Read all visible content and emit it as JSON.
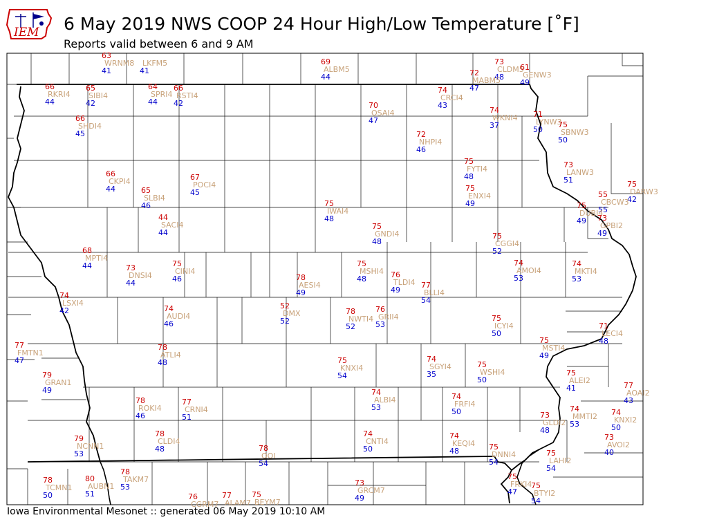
{
  "header": {
    "title": "6 May 2019 NWS COOP 24 Hour High/Low Temperature [˚F]",
    "subtitle": "Reports valid between 6 and 9 AM",
    "logo_text": "IEM"
  },
  "footer": {
    "text": "Iowa Environmental Mesonet :: generated 06 May 2019 10:10 AM"
  },
  "colors": {
    "high": "#cc0000",
    "low": "#0000cc",
    "station_id": "#c8a27a"
  },
  "stations": [
    {
      "id": "WRNM8",
      "high": "63",
      "low": "41"
    },
    {
      "id": "LKFM5",
      "high": "",
      "low": "41"
    },
    {
      "id": "ALBM5",
      "high": "69",
      "low": "44"
    },
    {
      "id": "CLDM5",
      "high": "73",
      "low": "48"
    },
    {
      "id": "GENW3",
      "high": "61",
      "low": "49"
    },
    {
      "id": "MABM5",
      "high": "72",
      "low": "47"
    },
    {
      "id": "RKRI4",
      "high": "66",
      "low": "44"
    },
    {
      "id": "SIBI4",
      "high": "65",
      "low": "42"
    },
    {
      "id": "SPRI4",
      "high": "64",
      "low": "44"
    },
    {
      "id": "RSTI4",
      "high": "66",
      "low": "42"
    },
    {
      "id": "OSAI4",
      "high": "70",
      "low": "47"
    },
    {
      "id": "CRCI4",
      "high": "74",
      "low": "43"
    },
    {
      "id": "WKNI4",
      "high": "74",
      "low": "37"
    },
    {
      "id": "LYNW3",
      "high": "71",
      "low": "50"
    },
    {
      "id": "SBNW3",
      "high": "75",
      "low": "50"
    },
    {
      "id": "SHDI4",
      "high": "66",
      "low": "45"
    },
    {
      "id": "NHPI4",
      "high": "72",
      "low": "46"
    },
    {
      "id": "FYTI4",
      "high": "75",
      "low": "48"
    },
    {
      "id": "LANW3",
      "high": "73",
      "low": "51"
    },
    {
      "id": "CKPI4",
      "high": "66",
      "low": "44"
    },
    {
      "id": "POCI4",
      "high": "67",
      "low": "45"
    },
    {
      "id": "SLBI4",
      "high": "65",
      "low": "46"
    },
    {
      "id": "ENXI4",
      "high": "75",
      "low": "49"
    },
    {
      "id": "DARW3",
      "high": "75",
      "low": "42"
    },
    {
      "id": "CBCW3",
      "high": "55",
      "low": "55"
    },
    {
      "id": "IWAI4",
      "high": "75",
      "low": "48"
    },
    {
      "id": "DUBI4",
      "high": "75",
      "low": "49"
    },
    {
      "id": "GPBI2",
      "high": "73",
      "low": "49"
    },
    {
      "id": "SACI4",
      "high": "44",
      "low": "44"
    },
    {
      "id": "GNDI4",
      "high": "75",
      "low": "48"
    },
    {
      "id": "CGGI4",
      "high": "75",
      "low": "52"
    },
    {
      "id": "MPTI4",
      "high": "68",
      "low": "44"
    },
    {
      "id": "DNSI4",
      "high": "73",
      "low": "44"
    },
    {
      "id": "CINI4",
      "high": "75",
      "low": "46"
    },
    {
      "id": "AESI4",
      "high": "78",
      "low": "49"
    },
    {
      "id": "MSHI4",
      "high": "75",
      "low": "48"
    },
    {
      "id": "TLDI4",
      "high": "76",
      "low": "49"
    },
    {
      "id": "BLLI4",
      "high": "77",
      "low": "54"
    },
    {
      "id": "AMOI4",
      "high": "74",
      "low": "53"
    },
    {
      "id": "MKTI4",
      "high": "74",
      "low": "53"
    },
    {
      "id": "LSXI4",
      "high": "74",
      "low": "42"
    },
    {
      "id": "AUDI4",
      "high": "74",
      "low": "46"
    },
    {
      "id": "DMX",
      "high": "52",
      "low": "52"
    },
    {
      "id": "NWTI4",
      "high": "78",
      "low": "52"
    },
    {
      "id": "GRII4",
      "high": "76",
      "low": "53"
    },
    {
      "id": "ICYI4",
      "high": "75",
      "low": "50"
    },
    {
      "id": "LECI4",
      "high": "71",
      "low": "48"
    },
    {
      "id": "FMTN1",
      "high": "77",
      "low": "47"
    },
    {
      "id": "ATLI4",
      "high": "78",
      "low": "48"
    },
    {
      "id": "KNXI4",
      "high": "75",
      "low": "54"
    },
    {
      "id": "SGYI4",
      "high": "74",
      "low": "35"
    },
    {
      "id": "WSHI4",
      "high": "75",
      "low": "50"
    },
    {
      "id": "MSTI4",
      "high": "75",
      "low": "49"
    },
    {
      "id": "GRAN1",
      "high": "79",
      "low": "49"
    },
    {
      "id": "ALEI2",
      "high": "75",
      "low": "41"
    },
    {
      "id": "ALBI4",
      "high": "74",
      "low": "53"
    },
    {
      "id": "FRFI4",
      "high": "74",
      "low": "50"
    },
    {
      "id": "AOAI2",
      "high": "77",
      "low": "43"
    },
    {
      "id": "ROKI4",
      "high": "78",
      "low": "46"
    },
    {
      "id": "CRNI4",
      "high": "77",
      "low": "51"
    },
    {
      "id": "GLDI2",
      "high": "73",
      "low": "48"
    },
    {
      "id": "MMTI2",
      "high": "74",
      "low": "53"
    },
    {
      "id": "KNXI2",
      "high": "74",
      "low": "50"
    },
    {
      "id": "NCNN1",
      "high": "79",
      "low": "53"
    },
    {
      "id": "CLDI4",
      "high": "78",
      "low": "48"
    },
    {
      "id": "CNTI4",
      "high": "74",
      "low": "50"
    },
    {
      "id": "KEQI4",
      "high": "74",
      "low": "48"
    },
    {
      "id": "AVOI2",
      "high": "73",
      "low": "40"
    },
    {
      "id": "DNNI4",
      "high": "75",
      "low": "54"
    },
    {
      "id": "LAHI2",
      "high": "75",
      "low": "54"
    },
    {
      "id": "OOI",
      "high": "78",
      "low": "54"
    },
    {
      "id": "TCMN1",
      "high": "78",
      "low": "50"
    },
    {
      "id": "AUBN1",
      "high": "80",
      "low": "51"
    },
    {
      "id": "TAKM7",
      "high": "78",
      "low": "53"
    },
    {
      "id": "GRCM7",
      "high": "73",
      "low": "49"
    },
    {
      "id": "FRKI4",
      "high": "75",
      "low": "47"
    },
    {
      "id": "BTYI2",
      "high": "75",
      "low": "54"
    },
    {
      "id": "CGRM7",
      "high": "76",
      "low": ""
    },
    {
      "id": "ALAM7",
      "high": "77",
      "low": ""
    },
    {
      "id": "BEYM7",
      "high": "75",
      "low": ""
    }
  ]
}
